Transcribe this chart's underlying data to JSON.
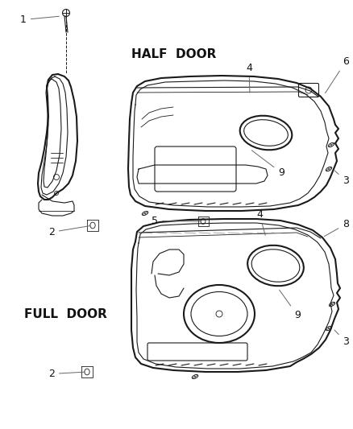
{
  "background_color": "#ffffff",
  "line_color": "#1a1a1a",
  "text_color": "#111111",
  "label_color": "#666666",
  "half_door_label": "HALF  DOOR",
  "full_door_label": "FULL  DOOR",
  "fig_width": 4.38,
  "fig_height": 5.33,
  "dpi": 100,
  "lw_main": 1.5,
  "lw_inner": 0.8,
  "lw_thin": 0.6
}
